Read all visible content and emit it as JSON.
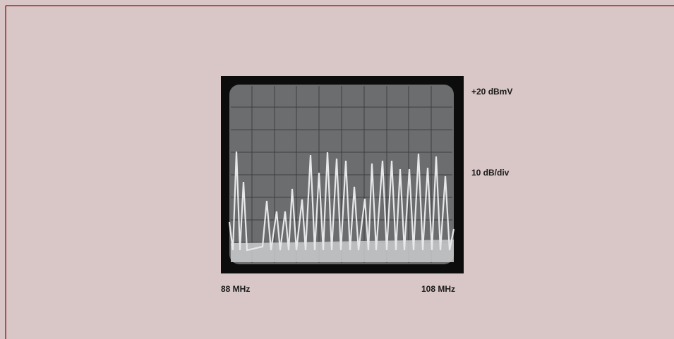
{
  "labels": {
    "top_level": "+20 dBmV",
    "scale": "10 dB/div",
    "start_freq": "88 MHz",
    "stop_freq": "108 MHz"
  }
}
